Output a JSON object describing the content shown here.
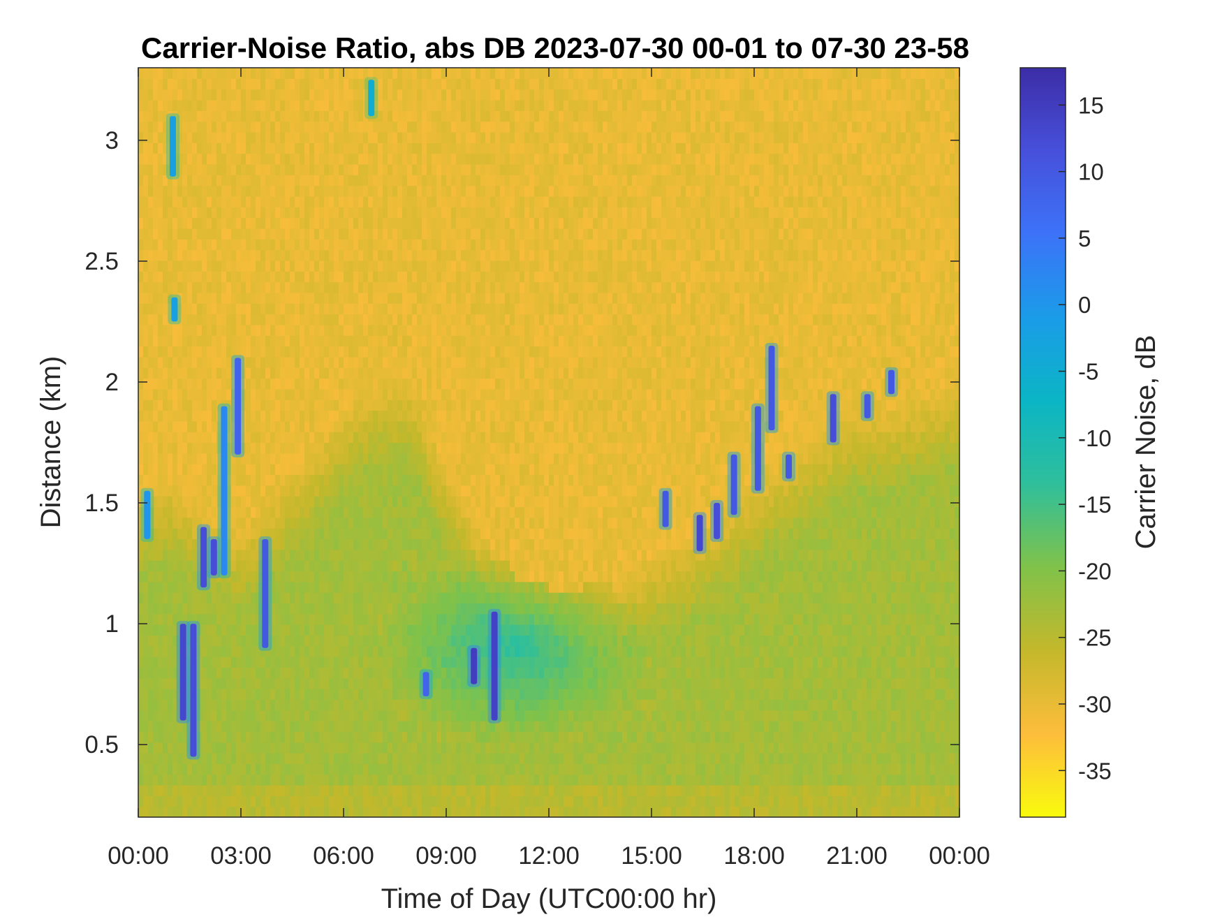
{
  "chart_data": {
    "type": "heatmap",
    "title": "Carrier-Noise Ratio, abs DB 2023-07-30 00-01 to 07-30 23-58",
    "xlabel": "Time of Day (UTC00:00 hr)",
    "ylabel": "Distance (km)",
    "colorbar_label": "Carrier Noise, dB",
    "x_ticks": [
      "00:00",
      "03:00",
      "06:00",
      "09:00",
      "12:00",
      "15:00",
      "18:00",
      "21:00",
      "00:00"
    ],
    "xlim_hours": [
      0,
      24
    ],
    "y_ticks": [
      "0.5",
      "1",
      "1.5",
      "2",
      "2.5",
      "3"
    ],
    "ylim_km": [
      0.2,
      3.3
    ],
    "colorbar_ticks": [
      "15",
      "10",
      "5",
      "0",
      "-5",
      "-10",
      "-15",
      "-20",
      "-25",
      "-30",
      "-35"
    ],
    "clim_db": [
      -38.5,
      17.8
    ],
    "colormap": [
      "#f9fb0e",
      "#fdbd3c",
      "#c4b82b",
      "#80c24a",
      "#2fbf9b",
      "#0bb5c5",
      "#1a9ce8",
      "#3c73f8",
      "#4750db",
      "#3c2da6"
    ],
    "background_db": -30,
    "boundary_layer_top_km": [
      {
        "hour": 0,
        "km": 1.55
      },
      {
        "hour": 1,
        "km": 1.6
      },
      {
        "hour": 2,
        "km": 1.45
      },
      {
        "hour": 3,
        "km": 1.4
      },
      {
        "hour": 4,
        "km": 1.55
      },
      {
        "hour": 5,
        "km": 1.7
      },
      {
        "hour": 6,
        "km": 1.9
      },
      {
        "hour": 7,
        "km": 2.0
      },
      {
        "hour": 8,
        "km": 2.0
      },
      {
        "hour": 9,
        "km": 1.65
      },
      {
        "hour": 10,
        "km": 1.4
      },
      {
        "hour": 11,
        "km": 1.2
      },
      {
        "hour": 12,
        "km": 1.15
      },
      {
        "hour": 13,
        "km": 1.15
      },
      {
        "hour": 14,
        "km": 1.2
      },
      {
        "hour": 15,
        "km": 1.3
      },
      {
        "hour": 16,
        "km": 1.35
      },
      {
        "hour": 17,
        "km": 1.45
      },
      {
        "hour": 18,
        "km": 1.6
      },
      {
        "hour": 19,
        "km": 1.7
      },
      {
        "hour": 20,
        "km": 1.8
      },
      {
        "hour": 21,
        "km": 1.9
      },
      {
        "hour": 22,
        "km": 1.9
      },
      {
        "hour": 23,
        "km": 1.95
      },
      {
        "hour": 24,
        "km": 2.0
      }
    ],
    "low_cnr_region": {
      "hour_start": 7,
      "hour_end": 15,
      "km_start": 0.5,
      "km_end": 1.3,
      "db": -13
    },
    "cloud_features": [
      {
        "hour": 0.25,
        "km_bottom": 1.35,
        "km_top": 1.55,
        "db": 0
      },
      {
        "hour": 1.0,
        "km_bottom": 2.85,
        "km_top": 3.1,
        "db": -2
      },
      {
        "hour": 1.05,
        "km_bottom": 2.25,
        "km_top": 2.35,
        "db": -2
      },
      {
        "hour": 1.3,
        "km_bottom": 0.6,
        "km_top": 1.0,
        "db": 13
      },
      {
        "hour": 1.6,
        "km_bottom": 0.45,
        "km_top": 1.0,
        "db": 12
      },
      {
        "hour": 1.9,
        "km_bottom": 1.15,
        "km_top": 1.4,
        "db": 12
      },
      {
        "hour": 2.2,
        "km_bottom": 1.2,
        "km_top": 1.35,
        "db": 12
      },
      {
        "hour": 2.5,
        "km_bottom": 1.2,
        "km_top": 1.9,
        "db": 2
      },
      {
        "hour": 2.9,
        "km_bottom": 1.7,
        "km_top": 2.1,
        "db": 8
      },
      {
        "hour": 3.7,
        "km_bottom": 0.9,
        "km_top": 1.35,
        "db": 10
      },
      {
        "hour": 6.8,
        "km_bottom": 3.1,
        "km_top": 3.25,
        "db": -5
      },
      {
        "hour": 8.4,
        "km_bottom": 0.7,
        "km_top": 0.8,
        "db": 8
      },
      {
        "hour": 9.8,
        "km_bottom": 0.75,
        "km_top": 0.9,
        "db": 15
      },
      {
        "hour": 10.4,
        "km_bottom": 0.6,
        "km_top": 1.05,
        "db": 14
      },
      {
        "hour": 15.4,
        "km_bottom": 1.4,
        "km_top": 1.55,
        "db": 10
      },
      {
        "hour": 16.4,
        "km_bottom": 1.3,
        "km_top": 1.45,
        "db": 13
      },
      {
        "hour": 16.9,
        "km_bottom": 1.35,
        "km_top": 1.5,
        "db": 12
      },
      {
        "hour": 17.4,
        "km_bottom": 1.45,
        "km_top": 1.7,
        "db": 10
      },
      {
        "hour": 18.1,
        "km_bottom": 1.55,
        "km_top": 1.9,
        "db": 10
      },
      {
        "hour": 18.5,
        "km_bottom": 1.8,
        "km_top": 2.15,
        "db": 10
      },
      {
        "hour": 19.0,
        "km_bottom": 1.6,
        "km_top": 1.7,
        "db": 10
      },
      {
        "hour": 20.3,
        "km_bottom": 1.75,
        "km_top": 1.95,
        "db": 12
      },
      {
        "hour": 21.3,
        "km_bottom": 1.85,
        "km_top": 1.95,
        "db": 10
      },
      {
        "hour": 22.0,
        "km_bottom": 1.95,
        "km_top": 2.05,
        "db": 10
      }
    ],
    "grid": false,
    "legend": "colorbar-right"
  }
}
